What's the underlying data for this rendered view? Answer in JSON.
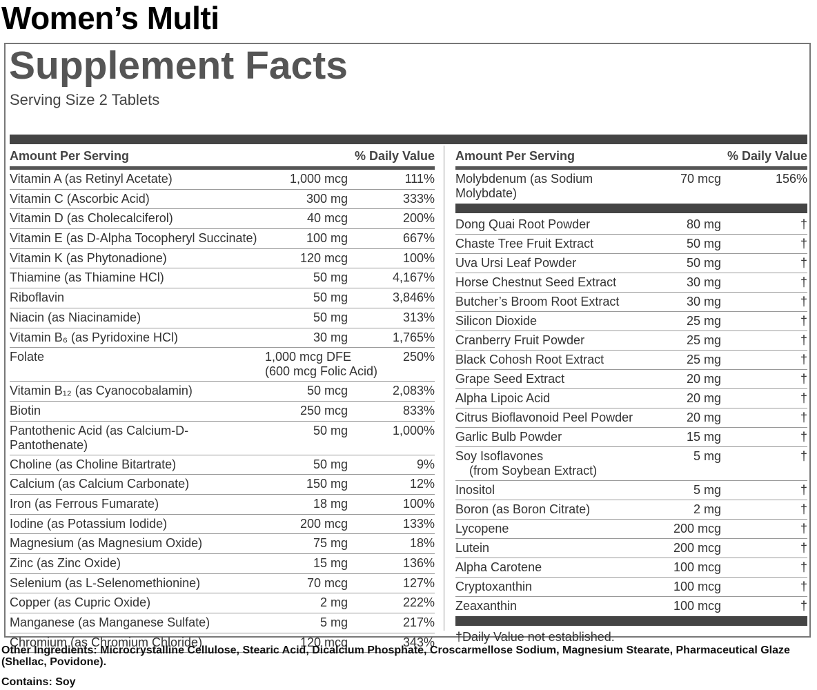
{
  "title": "Women’s Multi",
  "panel": {
    "heading": "Supplement Facts",
    "serving_size": "Serving Size 2 Tablets",
    "left": {
      "header": [
        "Amount Per Serving",
        "% Daily Value"
      ],
      "rows": [
        {
          "name": "Vitamin A (as Retinyl Acetate)",
          "amount": "1,000 mcg",
          "dv": "111%"
        },
        {
          "name": "Vitamin C (Ascorbic Acid)",
          "amount": "300 mg",
          "dv": "333%"
        },
        {
          "name": "Vitamin D (as Cholecalciferol)",
          "amount": "40 mcg",
          "dv": "200%"
        },
        {
          "name": "Vitamin E (as D-Alpha Tocopheryl Succinate)",
          "amount": "100 mg",
          "dv": "667%"
        },
        {
          "name": "Vitamin K (as Phytonadione)",
          "amount": "120 mcg",
          "dv": "100%"
        },
        {
          "name": "Thiamine (as Thiamine HCl)",
          "amount": "50 mg",
          "dv": "4,167%"
        },
        {
          "name": "Riboflavin",
          "amount": "50 mg",
          "dv": "3,846%"
        },
        {
          "name": "Niacin (as Niacinamide)",
          "amount": "50 mg",
          "dv": "313%"
        },
        {
          "name": "Vitamin B₆ (as Pyridoxine HCl)",
          "amount": "30 mg",
          "dv": "1,765%"
        },
        {
          "name": "Folate",
          "amount": "1,000 mcg DFE",
          "amount_note": "(600 mcg Folic Acid)",
          "dv": "250%"
        },
        {
          "name": "Vitamin B₁₂ (as Cyanocobalamin)",
          "amount": "50 mcg",
          "dv": "2,083%"
        },
        {
          "name": "Biotin",
          "amount": "250 mcg",
          "dv": "833%"
        },
        {
          "name": "Pantothenic Acid (as Calcium-D-Pantothenate)",
          "amount": "50 mg",
          "dv": "1,000%"
        },
        {
          "name": "Choline (as Choline Bitartrate)",
          "amount": "50 mg",
          "dv": "9%"
        },
        {
          "name": "Calcium (as Calcium Carbonate)",
          "amount": "150 mg",
          "dv": "12%"
        },
        {
          "name": "Iron (as Ferrous Fumarate)",
          "amount": "18 mg",
          "dv": "100%"
        },
        {
          "name": "Iodine (as Potassium Iodide)",
          "amount": "200 mcg",
          "dv": "133%"
        },
        {
          "name": "Magnesium (as Magnesium Oxide)",
          "amount": "75 mg",
          "dv": "18%"
        },
        {
          "name": "Zinc (as Zinc Oxide)",
          "amount": "15 mg",
          "dv": "136%"
        },
        {
          "name": "Selenium (as L-Selenomethionine)",
          "amount": "70 mcg",
          "dv": "127%"
        },
        {
          "name": "Copper (as Cupric Oxide)",
          "amount": "2 mg",
          "dv": "222%"
        },
        {
          "name": "Manganese (as Manganese Sulfate)",
          "amount": "5 mg",
          "dv": "217%"
        },
        {
          "name": "Chromium (as Chromium Chloride)",
          "amount": "120 mcg",
          "dv": "343%"
        }
      ]
    },
    "right": {
      "header": [
        "Amount Per Serving",
        "% Daily Value"
      ],
      "top_rows": [
        {
          "name": "Molybdenum (as Sodium Molybdate)",
          "amount": "70 mcg",
          "dv": "156%"
        }
      ],
      "rows": [
        {
          "name": "Dong Quai Root Powder",
          "amount": "80 mg",
          "dv": "†"
        },
        {
          "name": "Chaste Tree Fruit Extract",
          "amount": "50 mg",
          "dv": "†"
        },
        {
          "name": "Uva Ursi Leaf Powder",
          "amount": "50 mg",
          "dv": "†"
        },
        {
          "name": "Horse Chestnut Seed Extract",
          "amount": "30 mg",
          "dv": "†"
        },
        {
          "name": "Butcher’s Broom Root Extract",
          "amount": "30 mg",
          "dv": "†"
        },
        {
          "name": "Silicon Dioxide",
          "amount": "25 mg",
          "dv": "†"
        },
        {
          "name": "Cranberry Fruit Powder",
          "amount": "25 mg",
          "dv": "†"
        },
        {
          "name": "Black Cohosh Root Extract",
          "amount": "25 mg",
          "dv": "†"
        },
        {
          "name": "Grape Seed Extract",
          "amount": "20 mg",
          "dv": "†"
        },
        {
          "name": "Alpha Lipoic Acid",
          "amount": "20 mg",
          "dv": "†"
        },
        {
          "name": "Citrus Bioflavonoid Peel Powder",
          "amount": "20 mg",
          "dv": "†"
        },
        {
          "name": "Garlic Bulb Powder",
          "amount": "15 mg",
          "dv": "†"
        },
        {
          "name": "Soy Isoflavones",
          "name_note": "(from Soybean Extract)",
          "amount": "5 mg",
          "dv": "†"
        },
        {
          "name": "Inositol",
          "amount": "5 mg",
          "dv": "†"
        },
        {
          "name": "Boron (as Boron Citrate)",
          "amount": "2 mg",
          "dv": "†"
        },
        {
          "name": "Lycopene",
          "amount": "200 mcg",
          "dv": "†"
        },
        {
          "name": "Lutein",
          "amount": "200 mcg",
          "dv": "†"
        },
        {
          "name": "Alpha Carotene",
          "amount": "100 mcg",
          "dv": "†"
        },
        {
          "name": "Cryptoxanthin",
          "amount": "100 mcg",
          "dv": "†"
        },
        {
          "name": "Zeaxanthin",
          "amount": "100 mcg",
          "dv": "†"
        }
      ],
      "footnote": "†Daily Value not established."
    }
  },
  "other_ingredients": {
    "label": "Other Ingredients:",
    "text": "Microcrystalline Cellulose, Stearic Acid, Dicalcium Phosphate, Croscarmellose Sodium, Magnesium Stearate, Pharmaceutical Glaze (Shellac, Povidone)."
  },
  "contains": {
    "label": "Contains:",
    "text": "Soy"
  }
}
